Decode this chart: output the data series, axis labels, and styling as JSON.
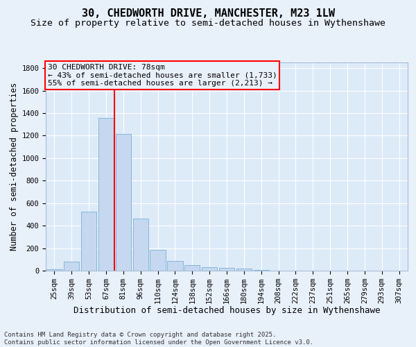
{
  "title": "30, CHEDWORTH DRIVE, MANCHESTER, M23 1LW",
  "subtitle": "Size of property relative to semi-detached houses in Wythenshawe",
  "xlabel": "Distribution of semi-detached houses by size in Wythenshawe",
  "ylabel": "Number of semi-detached properties",
  "categories": [
    "25sqm",
    "39sqm",
    "53sqm",
    "67sqm",
    "81sqm",
    "96sqm",
    "110sqm",
    "124sqm",
    "138sqm",
    "152sqm",
    "166sqm",
    "180sqm",
    "194sqm",
    "208sqm",
    "222sqm",
    "237sqm",
    "251sqm",
    "265sqm",
    "279sqm",
    "293sqm",
    "307sqm"
  ],
  "values": [
    15,
    80,
    525,
    1355,
    1215,
    465,
    185,
    85,
    47,
    33,
    25,
    18,
    8,
    2,
    0,
    0,
    0,
    0,
    0,
    0,
    0
  ],
  "bar_color": "#c5d8f0",
  "bar_edge_color": "#7aafd4",
  "vline_color": "red",
  "vline_x_index": 3.5,
  "annotation_box_text": "30 CHEDWORTH DRIVE: 78sqm\n← 43% of semi-detached houses are smaller (1,733)\n55% of semi-detached houses are larger (2,213) →",
  "ylim": [
    0,
    1850
  ],
  "yticks": [
    0,
    200,
    400,
    600,
    800,
    1000,
    1200,
    1400,
    1600,
    1800
  ],
  "background_color": "#e8f0fa",
  "plot_bg_color": "#ddeaf8",
  "footer_text": "Contains HM Land Registry data © Crown copyright and database right 2025.\nContains public sector information licensed under the Open Government Licence v3.0.",
  "title_fontsize": 11,
  "subtitle_fontsize": 9.5,
  "xlabel_fontsize": 9,
  "ylabel_fontsize": 8.5,
  "tick_fontsize": 7.5,
  "annotation_fontsize": 8,
  "footer_fontsize": 6.5
}
